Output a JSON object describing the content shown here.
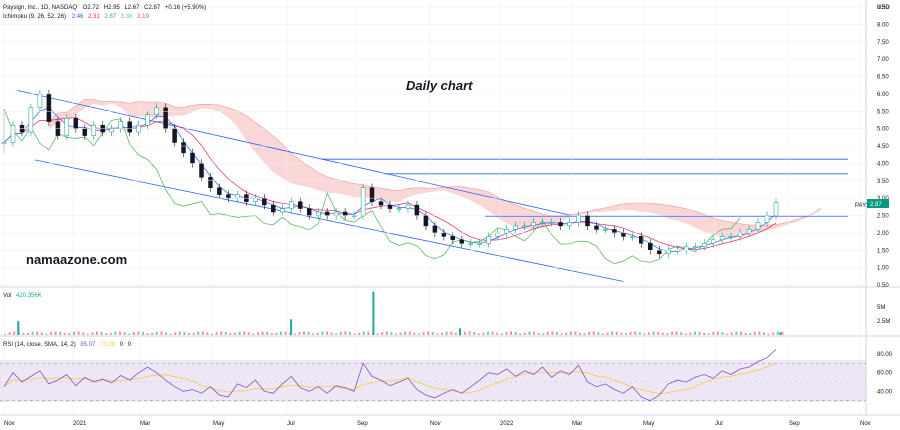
{
  "chart_data": [
    {
      "type": "candlestick",
      "legend": {
        "symbol_line": "Paysign, Inc., 1D, NASDAQ",
        "ohlc": {
          "open_label": "O",
          "open": "2.72",
          "high_label": "H",
          "high": "2.95",
          "low_label": "L",
          "low": "2.67",
          "close_label": "C",
          "close": "2.87",
          "change": "+0.16 (+5.90%)"
        },
        "indicator": "Ichimoku (9, 26, 52, 26)",
        "indicator_values": [
          {
            "value": "2.46",
            "color": "#2962ff"
          },
          {
            "value": "2.31",
            "color": "#e91e63"
          },
          {
            "value": "2.87",
            "color": "#4caf50"
          },
          {
            "value": "3.38",
            "color": "#81c784"
          },
          {
            "value": "2.19",
            "color": "#ef5350"
          }
        ]
      },
      "title": "Daily chart",
      "watermark": "namaazone.com",
      "currency": "USD",
      "symbol_label": "PAYS",
      "last_price_label": "2.87",
      "y_ticks": [
        "8.50",
        "8.00",
        "7.50",
        "7.00",
        "6.50",
        "6.00",
        "5.50",
        "5.00",
        "4.50",
        "4.00",
        "3.50",
        "3.00",
        "2.50",
        "2.00",
        "1.50",
        "1.00",
        "0.50"
      ],
      "ylim": [
        0.5,
        8.5
      ],
      "x_ticks": [
        "Nov",
        "2021",
        "Mar",
        "May",
        "Jul",
        "Sep",
        "Nov",
        "2022",
        "Mar",
        "May",
        "Jul",
        "Sep",
        "Nov"
      ],
      "close_series": [
        4.6,
        5.1,
        4.9,
        5.6,
        6.0,
        5.2,
        4.8,
        5.3,
        5.0,
        4.8,
        5.1,
        4.9,
        5.0,
        5.2,
        4.9,
        5.1,
        5.4,
        5.6,
        5.0,
        4.6,
        4.3,
        4.0,
        3.6,
        3.3,
        3.1,
        3.0,
        3.1,
        2.9,
        3.0,
        2.8,
        2.6,
        2.7,
        2.9,
        2.7,
        2.5,
        2.6,
        2.5,
        2.6,
        2.5,
        2.5,
        3.3,
        2.9,
        2.8,
        2.7,
        2.7,
        2.8,
        2.5,
        2.2,
        2.0,
        1.9,
        1.8,
        1.7,
        1.7,
        1.7,
        1.9,
        2.0,
        2.1,
        2.2,
        2.2,
        2.3,
        2.3,
        2.3,
        2.2,
        2.3,
        2.5,
        2.2,
        2.1,
        2.1,
        2.0,
        1.9,
        1.9,
        1.7,
        1.5,
        1.4,
        1.5,
        1.5,
        1.6,
        1.6,
        1.7,
        1.8,
        1.9,
        1.9,
        2.0,
        2.1,
        2.3,
        2.5,
        2.87
      ],
      "channel": {
        "upper": {
          "start": [
            0.02,
            6.1
          ],
          "end": [
            0.66,
            2.5
          ]
        },
        "lower": {
          "start": [
            0.04,
            4.1
          ],
          "end": [
            0.72,
            0.6
          ]
        }
      },
      "horizontal_levels": [
        4.12,
        3.7,
        2.48
      ],
      "volume": {
        "label": "Vol",
        "value": "420.356K",
        "ticks": [
          "5M",
          "2.5M"
        ],
        "spikes": [
          {
            "pos": 0.02,
            "v": 2.5
          },
          {
            "pos": 0.335,
            "v": 2.8
          },
          {
            "pos": 0.43,
            "v": 7.7
          },
          {
            "pos": 0.53,
            "v": 1.2
          },
          {
            "pos": 0.9,
            "v": 0.5
          }
        ]
      },
      "rsi": {
        "label": "RSI (14, close, SMA, 14, 2)",
        "value": "85.07",
        "sma_value": "73.06",
        "extra": [
          "0",
          "0"
        ],
        "ticks": [
          "80.00",
          "60.00",
          "40.00"
        ],
        "bands": [
          70,
          30
        ],
        "series": [
          45,
          60,
          50,
          56,
          62,
          48,
          52,
          58,
          46,
          55,
          50,
          53,
          49,
          57,
          52,
          60,
          66,
          60,
          52,
          45,
          40,
          42,
          38,
          45,
          36,
          34,
          48,
          44,
          52,
          40,
          38,
          48,
          56,
          44,
          40,
          45,
          38,
          46,
          44,
          40,
          70,
          56,
          52,
          46,
          50,
          54,
          42,
          36,
          33,
          38,
          42,
          38,
          45,
          52,
          60,
          58,
          64,
          56,
          62,
          58,
          66,
          55,
          62,
          58,
          68,
          50,
          45,
          48,
          42,
          38,
          45,
          34,
          30,
          36,
          48,
          52,
          50,
          55,
          58,
          54,
          62,
          58,
          64,
          66,
          72,
          76,
          85
        ]
      }
    }
  ],
  "colors": {
    "up": "#089981",
    "down": "#131722",
    "channel": "#2962ff",
    "tenkan": "#2962ff",
    "kijun": "#e91e63",
    "chikou": "#4caf50",
    "cloud": "#f8c6c6",
    "rsi_line": "#7e57c2",
    "rsi_sma": "#f7c948",
    "rsi_bg": "#ede7f6",
    "volume": "#26a69a",
    "grid": "#eeeeee",
    "price_badge": "#089981"
  }
}
